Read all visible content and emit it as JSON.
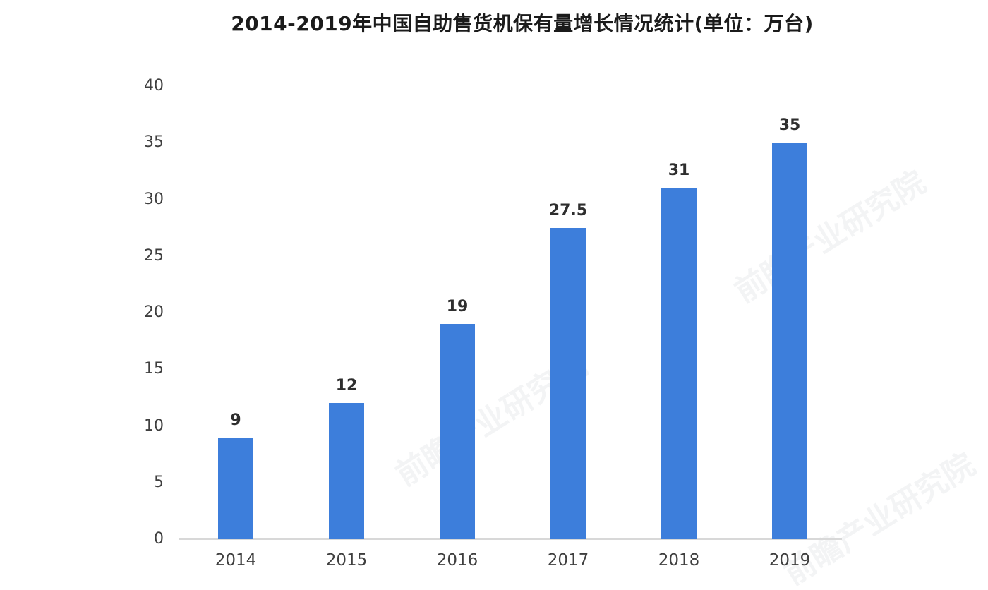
{
  "title": "2014-2019年中国自助售货机保有量增长情况统计(单位：万台)",
  "watermark_text": "前瞻产业研究院",
  "colors": {
    "bar": "#3D7EDB",
    "baseline": "#d8d8d8",
    "title_text": "#1b1b1b",
    "tick_text": "#3f3f3f",
    "value_text": "#2e2e2e",
    "background": "#ffffff"
  },
  "chart_data": {
    "type": "bar",
    "title": "2014-2019年中国自助售货机保有量增长情况统计(单位：万台)",
    "unit": "万台",
    "categories": [
      "2014",
      "2015",
      "2016",
      "2017",
      "2018",
      "2019"
    ],
    "values": [
      9,
      12,
      19,
      27.5,
      31,
      35
    ],
    "value_labels": [
      "9",
      "12",
      "19",
      "27.5",
      "31",
      "35"
    ],
    "xlabel": "",
    "ylabel": "",
    "ylim": [
      0,
      40
    ],
    "yticks": [
      0,
      5,
      10,
      15,
      20,
      25,
      30,
      35,
      40
    ],
    "grid": false,
    "legend": "none",
    "bar_color": "#3D7EDB"
  }
}
